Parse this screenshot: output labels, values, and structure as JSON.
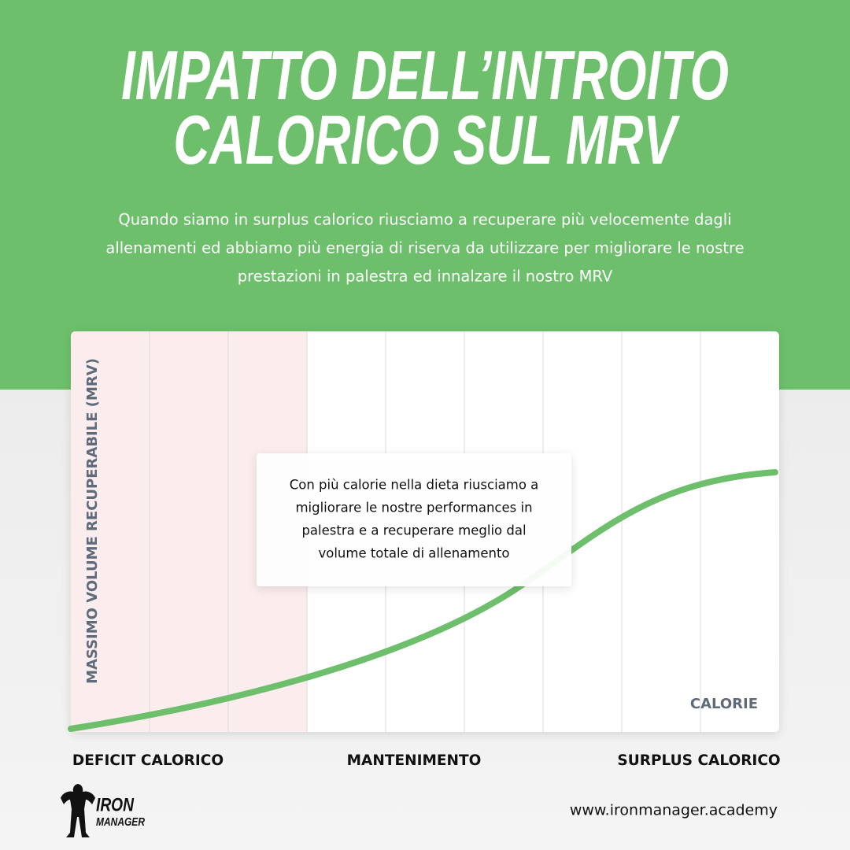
{
  "header": {
    "title": [
      "IMPATTO DELL’INTROITO",
      "CALORICO SUL MRV"
    ],
    "subtitle": [
      "Quando siamo in surplus calorico riusciamo a recuperare più velocemente dagli",
      "allenamenti ed abbiamo più energia di riserva da utilizzare per migliorare le nostre",
      "prestazioni in palestra ed innalzare il nostro MRV"
    ]
  },
  "chart": {
    "y_axis_label": "MASSIMO VOLUME RECUPERABILE (MRV)",
    "x_axis_label": "CALORIE",
    "annotation": [
      "Con più calorie nella dieta riusciamo a",
      "migliorare le nostre performances in",
      "palestra e a recuperare meglio dal",
      "volume totale di allenamento"
    ],
    "zones": [
      "DEFICIT CALORICO",
      "MANTENIMENTO",
      "SURPLUS CALORICO"
    ]
  },
  "footer": {
    "logo": [
      "IRON",
      "MANAGER"
    ],
    "url": "www.ironmanager.academy"
  }
}
